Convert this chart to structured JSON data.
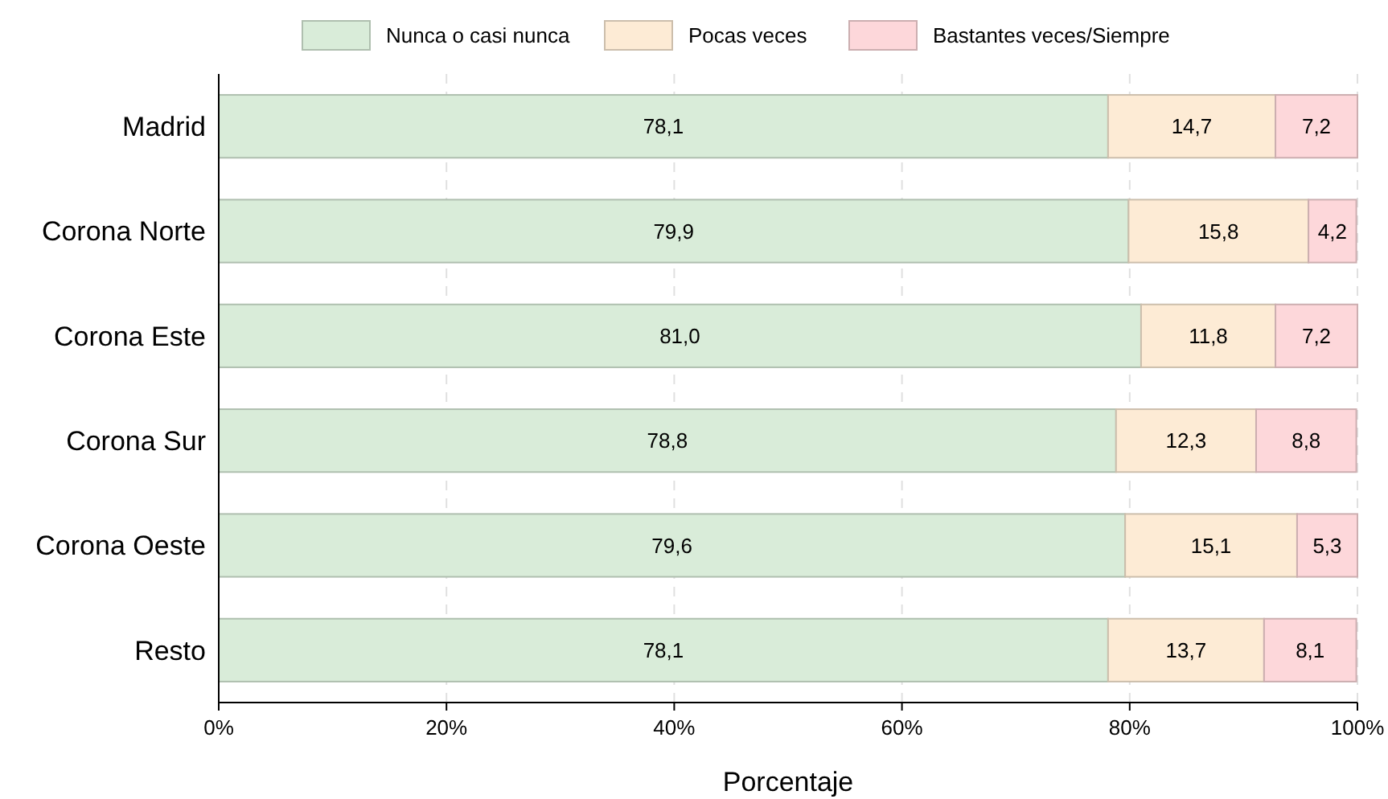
{
  "chart_data": {
    "type": "bar",
    "orientation": "horizontal",
    "stacked": true,
    "xlabel": "Porcentaje",
    "categories": [
      "Madrid",
      "Corona Norte",
      "Corona Este",
      "Corona Sur",
      "Corona Oeste",
      "Resto"
    ],
    "series": [
      {
        "name": "Nunca o casi nunca",
        "color": "#d9ecd9",
        "values": [
          78.1,
          79.9,
          81.0,
          78.8,
          79.6,
          78.1
        ],
        "value_labels": [
          "78,1",
          "79,9",
          "81,0",
          "78,8",
          "79,6",
          "78,1"
        ]
      },
      {
        "name": "Pocas veces",
        "color": "#fdebd5",
        "values": [
          14.7,
          15.8,
          11.8,
          12.3,
          15.1,
          13.7
        ],
        "value_labels": [
          "14,7",
          "15,8",
          "11,8",
          "12,3",
          "15,1",
          "13,7"
        ]
      },
      {
        "name": "Bastantes veces/Siempre",
        "color": "#fdd7da",
        "values": [
          7.2,
          4.2,
          7.2,
          8.8,
          5.3,
          8.1
        ],
        "value_labels": [
          "7,2",
          "4,2",
          "7,2",
          "8,8",
          "5,3",
          "8,1"
        ]
      }
    ],
    "xlim": [
      0,
      100
    ],
    "xticks": [
      {
        "value": 0,
        "label": "0%"
      },
      {
        "value": 20,
        "label": "20%"
      },
      {
        "value": 40,
        "label": "40%"
      },
      {
        "value": 60,
        "label": "60%"
      },
      {
        "value": 80,
        "label": "80%"
      },
      {
        "value": 100,
        "label": "100%"
      }
    ],
    "grid": "x",
    "legend": "top"
  }
}
